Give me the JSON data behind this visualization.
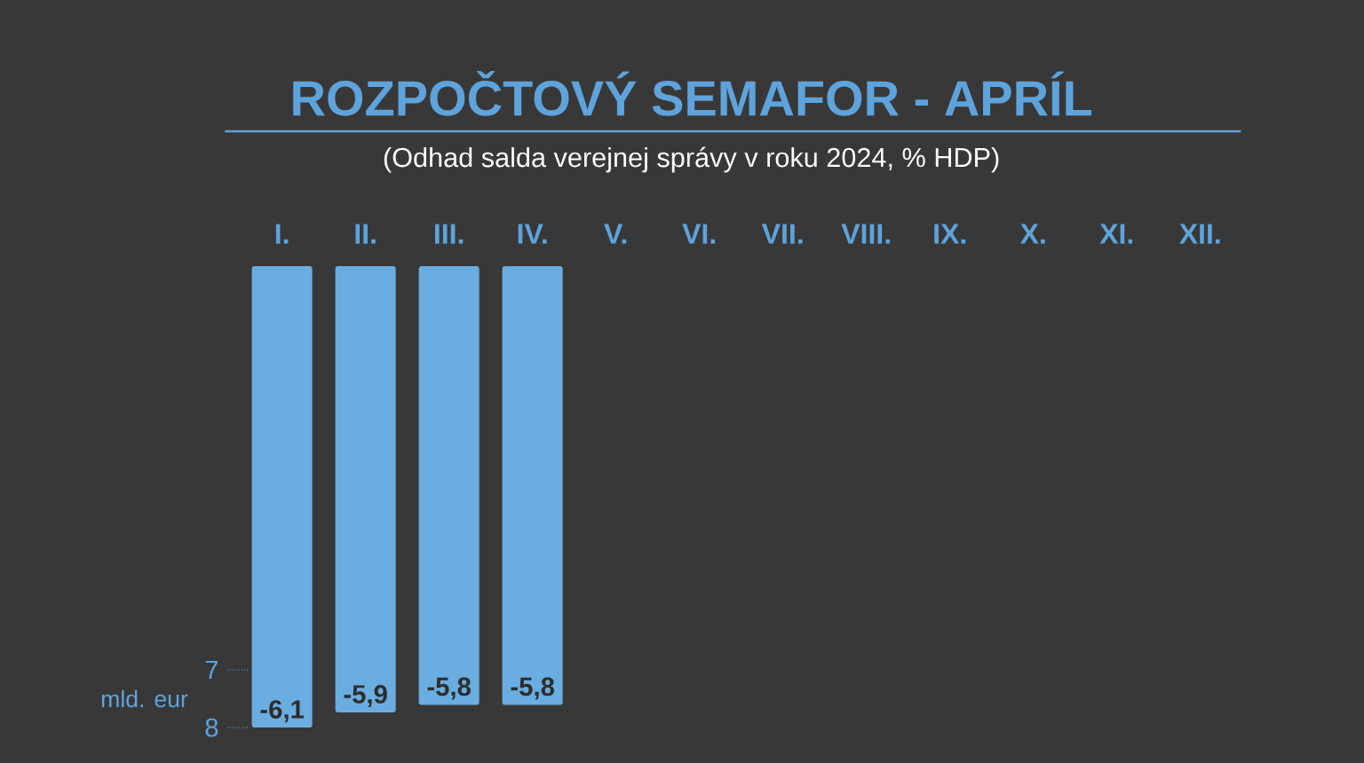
{
  "chart_data": {
    "type": "bar",
    "title": "ROZPOČTOVÝ SEMAFOR - APRÍL",
    "subtitle": "(Odhad salda verejnej správy v roku 2024, % HDP)",
    "y2label": "mld. eur",
    "categories": [
      "I.",
      "II.",
      "III.",
      "IV.",
      "V.",
      "VI.",
      "VII.",
      "VIII.",
      "IX.",
      "X.",
      "XI.",
      "XII."
    ],
    "values": [
      -6.1,
      -5.9,
      -5.8,
      -5.8,
      null,
      null,
      null,
      null,
      null,
      null,
      null,
      null
    ],
    "value_labels": [
      "-6,1",
      "-5,9",
      "-5,8",
      "-5,8",
      null,
      null,
      null,
      null,
      null,
      null,
      null,
      null
    ],
    "color": "#6aade0",
    "y2lim": [
      8,
      0
    ],
    "y2ticks": [
      7,
      8
    ]
  }
}
